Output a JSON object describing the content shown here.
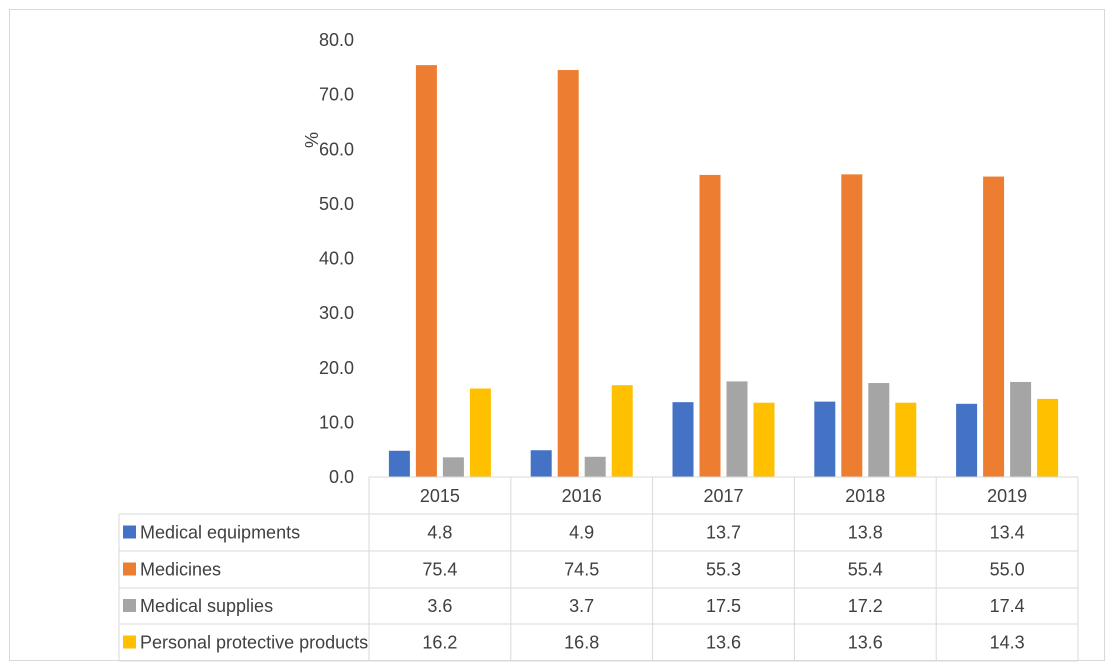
{
  "chart_data": {
    "type": "bar",
    "ylabel": "%",
    "ylim": [
      0,
      80
    ],
    "yticks": [
      "0.0",
      "10.0",
      "20.0",
      "30.0",
      "40.0",
      "50.0",
      "60.0",
      "70.0",
      "80.0"
    ],
    "categories": [
      "2015",
      "2016",
      "2017",
      "2018",
      "2019"
    ],
    "grid": false,
    "legend": "data-table",
    "series": [
      {
        "name": "Medical equipments",
        "color": "#4472c4",
        "values": [
          4.8,
          4.9,
          13.7,
          13.8,
          13.4
        ],
        "labels": [
          "4.8",
          "4.9",
          "13.7",
          "13.8",
          "13.4"
        ]
      },
      {
        "name": "Medicines",
        "color": "#ed7d31",
        "values": [
          75.4,
          74.5,
          55.3,
          55.4,
          55.0
        ],
        "labels": [
          "75.4",
          "74.5",
          "55.3",
          "55.4",
          "55.0"
        ]
      },
      {
        "name": "Medical supplies",
        "color": "#a5a5a5",
        "values": [
          3.6,
          3.7,
          17.5,
          17.2,
          17.4
        ],
        "labels": [
          "3.6",
          "3.7",
          "17.5",
          "17.2",
          "17.4"
        ]
      },
      {
        "name": "Personal protective products",
        "color": "#ffc000",
        "values": [
          16.2,
          16.8,
          13.6,
          13.6,
          14.3
        ],
        "labels": [
          "16.2",
          "16.8",
          "13.6",
          "13.6",
          "14.3"
        ]
      }
    ]
  }
}
